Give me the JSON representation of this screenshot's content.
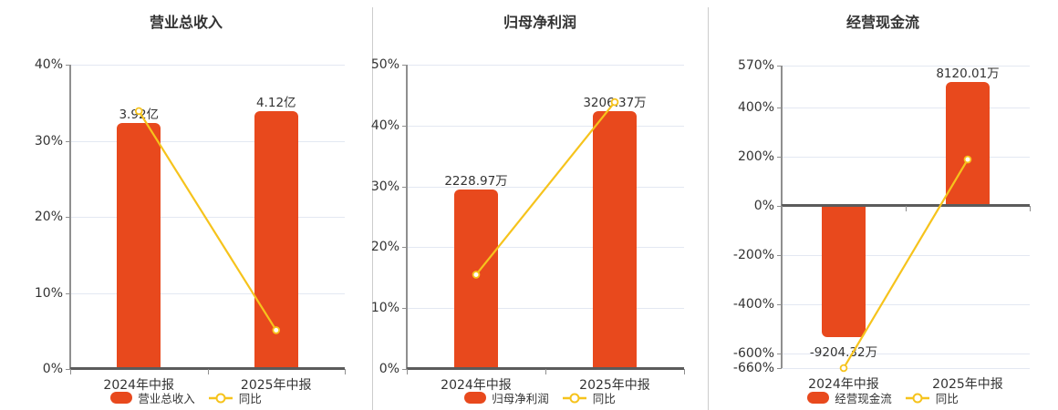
{
  "colors": {
    "bar": "#E8491D",
    "line": "#F6C31C",
    "grid": "#E3E8F2",
    "zero_axis": "#5B5B5B",
    "y_axis": "#8F8F8F",
    "text": "#333333",
    "divider": "#CCCCCC",
    "background": "#FFFFFF"
  },
  "chart_data": [
    {
      "type": "bar",
      "title": "营业总收入",
      "categories": [
        "2024年中报",
        "2025年中报"
      ],
      "series": [
        {
          "name": "营业总收入",
          "kind": "bar",
          "value_labels": [
            "3.92亿",
            "4.12亿"
          ],
          "plotted_pct": [
            32.3,
            33.95
          ]
        },
        {
          "name": "同比",
          "kind": "line",
          "values_pct": [
            33.9,
            5.1
          ]
        }
      ],
      "y_axis": {
        "min": 0,
        "max": 40,
        "ticks": [
          {
            "value": 40,
            "label": "40%"
          },
          {
            "value": 30,
            "label": "30%"
          },
          {
            "value": 20,
            "label": "20%"
          },
          {
            "value": 10,
            "label": "10%"
          },
          {
            "value": 0,
            "label": "0%"
          }
        ]
      },
      "legend": [
        "营业总收入",
        "同比"
      ],
      "legend_position": "bottom",
      "grid": true
    },
    {
      "type": "bar",
      "title": "归母净利润",
      "categories": [
        "2024年中报",
        "2025年中报"
      ],
      "series": [
        {
          "name": "归母净利润",
          "kind": "bar",
          "value_labels": [
            "2228.97万",
            "3206.37万"
          ],
          "plotted_pct": [
            29.5,
            42.4
          ]
        },
        {
          "name": "同比",
          "kind": "line",
          "values_pct": [
            15.5,
            43.85
          ]
        }
      ],
      "y_axis": {
        "min": 0,
        "max": 50,
        "ticks": [
          {
            "value": 50,
            "label": "50%"
          },
          {
            "value": 40,
            "label": "40%"
          },
          {
            "value": 30,
            "label": "30%"
          },
          {
            "value": 20,
            "label": "20%"
          },
          {
            "value": 10,
            "label": "10%"
          },
          {
            "value": 0,
            "label": "0%"
          }
        ]
      },
      "legend": [
        "归母净利润",
        "同比"
      ],
      "legend_position": "bottom",
      "grid": true
    },
    {
      "type": "bar",
      "title": "经营现金流",
      "categories": [
        "2024年中报",
        "2025年中报"
      ],
      "series": [
        {
          "name": "经营现金流",
          "kind": "bar",
          "value_labels": [
            "-9204.32万",
            "8120.01万"
          ],
          "plotted_pct": [
            -535,
            505
          ]
        },
        {
          "name": "同比",
          "kind": "line",
          "values_pct": [
            -660,
            188.2
          ]
        }
      ],
      "y_axis": {
        "min": -660,
        "max": 570,
        "ticks": [
          {
            "value": 570,
            "label": "570%"
          },
          {
            "value": 400,
            "label": "400%"
          },
          {
            "value": 200,
            "label": "200%"
          },
          {
            "value": 0,
            "label": "0%"
          },
          {
            "value": -200,
            "label": "-200%"
          },
          {
            "value": -400,
            "label": "-400%"
          },
          {
            "value": -600,
            "label": "-600%"
          },
          {
            "value": -660,
            "label": "-660%"
          }
        ]
      },
      "legend": [
        "经营现金流",
        "同比"
      ],
      "legend_position": "bottom",
      "grid": true
    }
  ]
}
